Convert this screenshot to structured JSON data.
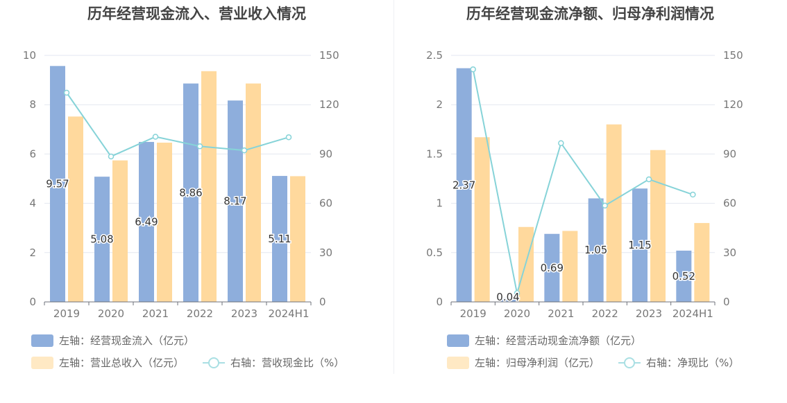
{
  "colors": {
    "bar1": "#8eaedc",
    "bar2": "#ffd99d",
    "line": "#86d3d8",
    "grid": "#e3e7f0",
    "axis": "#6e7079"
  },
  "chart_data": [
    {
      "type": "bar",
      "title": "历年经营现金流入、营业收入情况",
      "categories": [
        "2019",
        "2020",
        "2021",
        "2022",
        "2023",
        "2024H1"
      ],
      "left_axis": {
        "min": 0,
        "max": 10,
        "ticks": [
          0,
          2,
          4,
          6,
          8,
          10
        ]
      },
      "right_axis": {
        "min": 0,
        "max": 150,
        "ticks": [
          0,
          30,
          60,
          90,
          120,
          150
        ]
      },
      "series": [
        {
          "name": "左轴：经营现金流入（亿元）",
          "kind": "bar",
          "axis": "left",
          "values": [
            9.57,
            5.08,
            6.49,
            8.86,
            8.17,
            5.11
          ],
          "labels": [
            "9.57",
            "5.08",
            "6.49",
            "8.86",
            "8.17",
            "5.11"
          ]
        },
        {
          "name": "左轴：营业总收入（亿元）",
          "kind": "bar",
          "axis": "left",
          "values": [
            7.52,
            5.74,
            6.46,
            9.36,
            8.86,
            5.1
          ]
        },
        {
          "name": "右轴：营收现金比（%）",
          "kind": "line",
          "axis": "right",
          "values": [
            127.3,
            88.5,
            100.5,
            94.7,
            92.2,
            100.2
          ]
        }
      ],
      "grid": true,
      "legend_position": "bottom-left"
    },
    {
      "type": "bar",
      "title": "历年经营现金流净额、归母净利润情况",
      "categories": [
        "2019",
        "2020",
        "2021",
        "2022",
        "2023",
        "2024H1"
      ],
      "left_axis": {
        "min": 0,
        "max": 2.5,
        "ticks": [
          0,
          0.5,
          1,
          1.5,
          2,
          2.5
        ],
        "tick_labels": [
          "0",
          "0.5",
          "1",
          "1.5",
          "2",
          "2.5"
        ]
      },
      "right_axis": {
        "min": 0,
        "max": 150,
        "ticks": [
          0,
          30,
          60,
          90,
          120,
          150
        ]
      },
      "series": [
        {
          "name": "左轴：经营活动现金流净额（亿元）",
          "kind": "bar",
          "axis": "left",
          "values": [
            2.37,
            0.04,
            0.69,
            1.05,
            1.15,
            0.52
          ],
          "labels": [
            "2.37",
            "0.04",
            "0.69",
            "1.05",
            "1.15",
            "0.52"
          ]
        },
        {
          "name": "左轴：归母净利润（亿元）",
          "kind": "bar",
          "axis": "left",
          "values": [
            1.67,
            0.76,
            0.72,
            1.8,
            1.54,
            0.8
          ]
        },
        {
          "name": "右轴：净现比（%）",
          "kind": "line",
          "axis": "right",
          "values": [
            141.5,
            5.3,
            96.6,
            58.6,
            74.6,
            65.3
          ]
        }
      ],
      "grid": true,
      "legend_position": "bottom-left"
    }
  ]
}
